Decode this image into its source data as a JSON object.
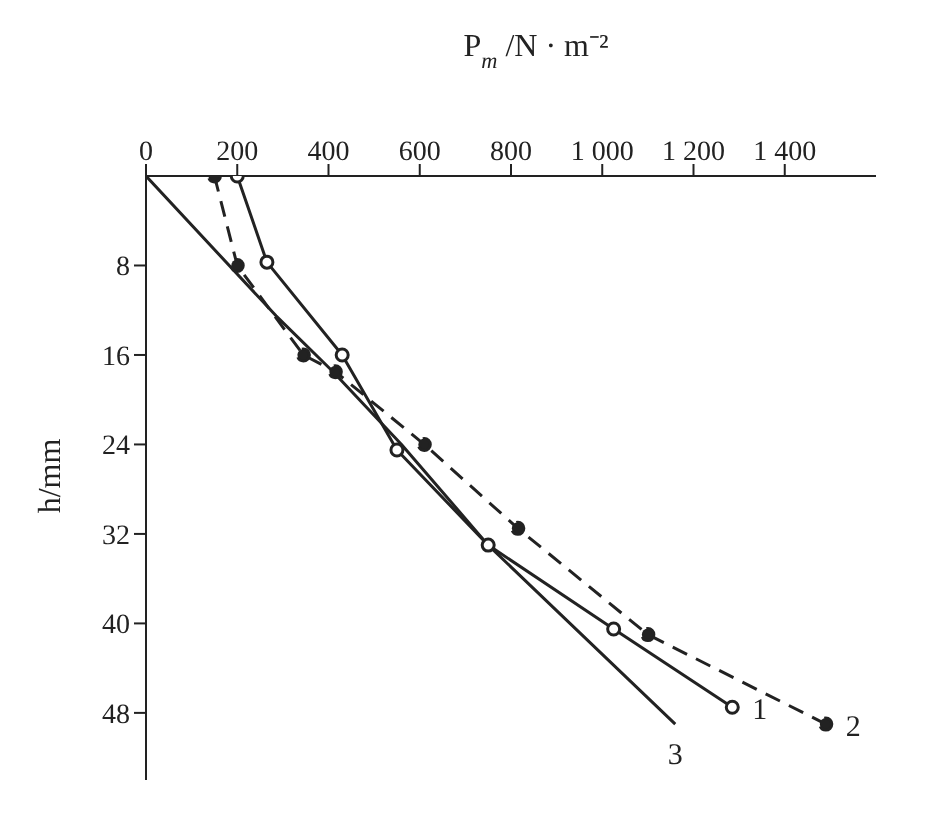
{
  "chart_data": {
    "type": "line",
    "xlabel": "P$_{m}$/N · m⁻²",
    "ylabel": "h/mm",
    "xlim": [
      0,
      1600
    ],
    "xticks": [
      0,
      200,
      400,
      600,
      800,
      {
        "value": 1000,
        "label": "1 000"
      },
      {
        "value": 1200,
        "label": "1 200"
      },
      {
        "value": 1400,
        "label": "1 400"
      }
    ],
    "ylim": [
      54,
      0
    ],
    "yticks": [
      8,
      16,
      24,
      32,
      40,
      48
    ],
    "grid": false,
    "legend": false,
    "series": [
      {
        "name": "1",
        "color": "#222222",
        "marker": "circle",
        "line_style": "solid",
        "x": [
          200,
          265,
          430,
          550,
          750,
          1025,
          1285
        ],
        "values": [
          0,
          7.7,
          16,
          24.5,
          33,
          40.5,
          47.5
        ]
      },
      {
        "name": "2",
        "color": "#222222",
        "marker": "circle",
        "line_style": "dashed",
        "x": [
          150,
          200,
          345,
          415,
          610,
          815,
          1100,
          1490
        ],
        "values": [
          0,
          8,
          16,
          17.5,
          24,
          31.5,
          41,
          49
        ]
      },
      {
        "name": "3",
        "color": "#222222",
        "marker": "none",
        "line_style": "solid",
        "x": [
          0,
          285,
          410,
          560,
          750,
          1160
        ],
        "values": [
          0,
          12.5,
          17.5,
          24,
          33,
          49
        ]
      }
    ]
  }
}
